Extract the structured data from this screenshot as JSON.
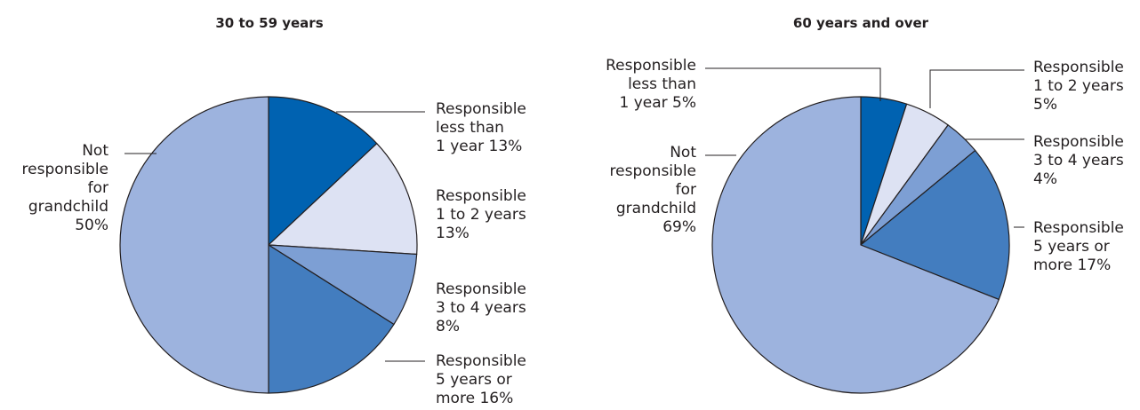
{
  "chart_data": [
    {
      "type": "pie",
      "title": "30 to 59 years",
      "slices": [
        {
          "lines": [
            "Responsible",
            "less than",
            "1 year  13%"
          ],
          "value": 13,
          "color": "#0062b1"
        },
        {
          "lines": [
            "Responsible",
            "1 to 2 years",
            "13%"
          ],
          "value": 13,
          "color": "#dde2f3"
        },
        {
          "lines": [
            "Responsible",
            "3 to 4 years",
            "8%"
          ],
          "value": 8,
          "color": "#7d9fd4"
        },
        {
          "lines": [
            "Responsible",
            "5 years or",
            "more  16%"
          ],
          "value": 16,
          "color": "#437dbf"
        },
        {
          "lines": [
            "Not",
            "responsible",
            "for",
            "grandchild",
            "50%"
          ],
          "value": 50,
          "color": "#9db3de"
        }
      ]
    },
    {
      "type": "pie",
      "title": "60 years and over",
      "slices": [
        {
          "lines": [
            "Responsible",
            "less than",
            "1 year  5%"
          ],
          "value": 5,
          "color": "#0062b1"
        },
        {
          "lines": [
            "Responsible",
            "1 to 2 years",
            "5%"
          ],
          "value": 5,
          "color": "#dde2f3"
        },
        {
          "lines": [
            "Responsible",
            "3 to 4 years",
            "4%"
          ],
          "value": 4,
          "color": "#7d9fd4"
        },
        {
          "lines": [
            "Responsible",
            "5 years or",
            "more  17%"
          ],
          "value": 17,
          "color": "#437dbf"
        },
        {
          "lines": [
            "Not",
            "responsible",
            "for",
            "grandchild",
            "69%"
          ],
          "value": 69,
          "color": "#9db3de"
        }
      ]
    }
  ]
}
